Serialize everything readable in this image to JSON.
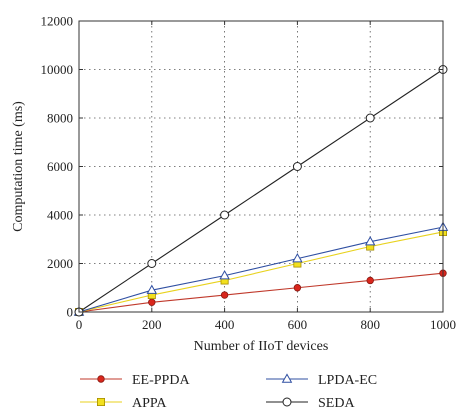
{
  "chart_data": {
    "type": "line",
    "title": "",
    "xlabel": "Number of IIoT devices",
    "ylabel": "Computation time (ms)",
    "xlim": [
      0,
      1000
    ],
    "ylim": [
      0,
      12000
    ],
    "xticks": [
      0,
      200,
      400,
      600,
      800,
      1000
    ],
    "yticks": [
      0,
      2000,
      4000,
      6000,
      8000,
      10000,
      12000
    ],
    "grid": true,
    "legend_position": "bottom",
    "x": [
      0,
      200,
      400,
      600,
      800,
      1000
    ],
    "series": [
      {
        "name": "EE-PPDA",
        "values": [
          0,
          400,
          700,
          1000,
          1300,
          1600
        ],
        "color": "#c0392b",
        "marker": "circle-filled",
        "marker_fill": "#d9261c"
      },
      {
        "name": "APPA",
        "values": [
          0,
          700,
          1300,
          2000,
          2700,
          3300
        ],
        "color": "#e8d21e",
        "marker": "square-filled",
        "marker_fill": "#f2e01e"
      },
      {
        "name": "LPDA-EC",
        "values": [
          0,
          900,
          1500,
          2200,
          2900,
          3500
        ],
        "color": "#2f4fa2",
        "marker": "triangle-open",
        "marker_fill": "none"
      },
      {
        "name": "SEDA",
        "values": [
          0,
          2000,
          4000,
          6000,
          8000,
          10000
        ],
        "color": "#222222",
        "marker": "circle-open",
        "marker_fill": "none"
      }
    ]
  }
}
